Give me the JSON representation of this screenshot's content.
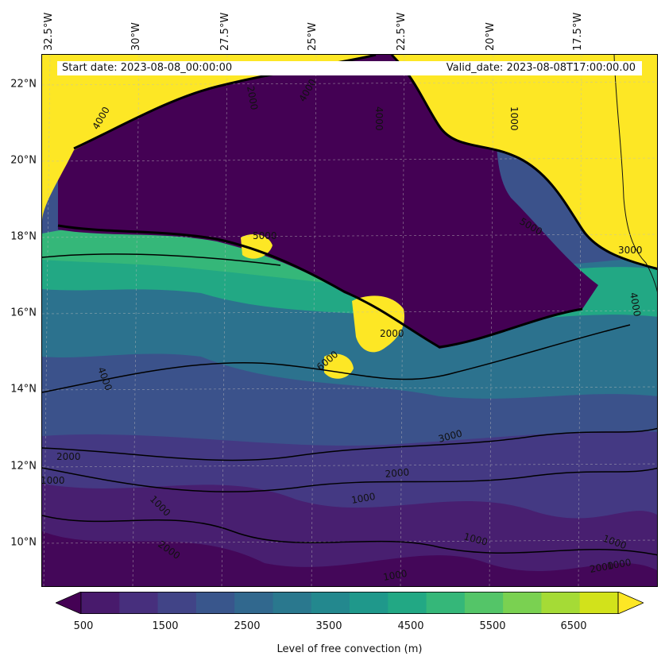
{
  "info": {
    "start_date": "Start date: 2023-08-08_00:00:00",
    "valid_date": "Valid_date: 2023-08-08T17:00:00.00"
  },
  "lat_labels": [
    "22°N",
    "20°N",
    "18°N",
    "16°N",
    "14°N",
    "12°N",
    "10°N"
  ],
  "lon_labels": [
    "32.5°W",
    "30°W",
    "27.5°W",
    "25°W",
    "22.5°W",
    "20°W",
    "17.5°W"
  ],
  "contour_labels": [
    "2000",
    "4000",
    "4000",
    "4000",
    "1000",
    "5000",
    "6000",
    "2000",
    "5000",
    "3000",
    "4000",
    "3000",
    "2000",
    "2000",
    "1000",
    "1000",
    "1000",
    "1000",
    "2000",
    "4000",
    "1000",
    "1000",
    "2000",
    "1000"
  ],
  "colorbar": {
    "label": "Level of free convection (m)",
    "ticks": [
      "500",
      "1500",
      "2500",
      "3500",
      "4500",
      "5500",
      "6500"
    ],
    "colors": [
      "#440154",
      "#481a6c",
      "#472f7d",
      "#414487",
      "#39568c",
      "#31688e",
      "#2a788e",
      "#23888e",
      "#1f988b",
      "#22a884",
      "#35b779",
      "#54c568",
      "#7ad151",
      "#a5db36",
      "#d2e21b",
      "#fde725"
    ]
  }
}
